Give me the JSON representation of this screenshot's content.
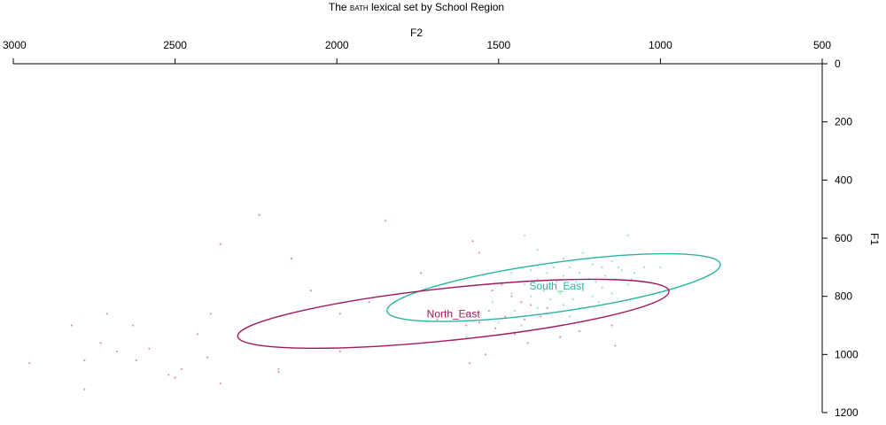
{
  "chart_data": {
    "type": "scatter",
    "title_prefix": "The ",
    "title_keyword": "bath",
    "title_suffix": " lexical set by School Region",
    "xlabel": "F2",
    "ylabel": "F1",
    "xlim": [
      3000,
      500
    ],
    "ylim": [
      0,
      1200
    ],
    "x_ticks": [
      3000,
      2500,
      2000,
      1500,
      1000,
      500
    ],
    "y_ticks": [
      0,
      200,
      400,
      600,
      800,
      1000,
      1200
    ],
    "x_tick_labels": [
      "3000",
      "2500",
      "2000",
      "1500",
      "1000",
      "500"
    ],
    "y_tick_labels": [
      "0",
      "200",
      "400",
      "600",
      "800",
      "1000",
      "1200"
    ],
    "x_axis_position": "top",
    "y_axis_position": "right",
    "grid": false,
    "series": [
      {
        "name": "South_East",
        "color": "#2BB3A5",
        "label_at": [
          1320,
          765
        ],
        "ellipse": {
          "cx": 1330,
          "cy": 770,
          "rx": 520,
          "ry": 85,
          "angle": -8
        },
        "points": [
          [
            1100,
            590
          ],
          [
            1420,
            590
          ],
          [
            1380,
            640
          ],
          [
            1240,
            650
          ],
          [
            1300,
            670
          ],
          [
            1150,
            680
          ],
          [
            1210,
            690
          ],
          [
            1280,
            700
          ],
          [
            1330,
            700
          ],
          [
            1180,
            700
          ],
          [
            1050,
            700
          ],
          [
            1000,
            700
          ],
          [
            1400,
            710
          ],
          [
            1120,
            710
          ],
          [
            1250,
            720
          ],
          [
            1350,
            720
          ],
          [
            1460,
            720
          ],
          [
            1080,
            720
          ],
          [
            1170,
            730
          ],
          [
            1300,
            730
          ],
          [
            1220,
            740
          ],
          [
            1380,
            740
          ],
          [
            1140,
            740
          ],
          [
            1260,
            750
          ],
          [
            1320,
            750
          ],
          [
            1200,
            750
          ],
          [
            1100,
            760
          ],
          [
            1420,
            760
          ],
          [
            1280,
            770
          ],
          [
            1180,
            770
          ],
          [
            1360,
            780
          ],
          [
            1240,
            780
          ],
          [
            1150,
            790
          ],
          [
            1310,
            790
          ],
          [
            1460,
            790
          ],
          [
            1210,
            800
          ],
          [
            1400,
            800
          ],
          [
            1270,
            810
          ],
          [
            1340,
            810
          ],
          [
            1190,
            820
          ],
          [
            1520,
            820
          ],
          [
            1300,
            830
          ],
          [
            1250,
            840
          ],
          [
            1380,
            840
          ],
          [
            1450,
            850
          ],
          [
            1350,
            860
          ],
          [
            1560,
            860
          ],
          [
            1280,
            870
          ],
          [
            1500,
            890
          ],
          [
            1430,
            900
          ],
          [
            1600,
            940
          ],
          [
            1130,
            700
          ],
          [
            1090,
            740
          ]
        ]
      },
      {
        "name": "North_East",
        "color": "#A3175F",
        "label_at": [
          1640,
          860
        ],
        "ellipse": {
          "cx": 1640,
          "cy": 860,
          "rx": 670,
          "ry": 90,
          "angle": -6
        },
        "points": [
          [
            2240,
            520
          ],
          [
            1850,
            540
          ],
          [
            2360,
            620
          ],
          [
            2140,
            670
          ],
          [
            1740,
            720
          ],
          [
            1580,
            610
          ],
          [
            1560,
            650
          ],
          [
            1490,
            760
          ],
          [
            1520,
            780
          ],
          [
            1460,
            800
          ],
          [
            1430,
            820
          ],
          [
            1400,
            830
          ],
          [
            1350,
            840
          ],
          [
            1530,
            850
          ],
          [
            1600,
            860
          ],
          [
            1480,
            870
          ],
          [
            1420,
            880
          ],
          [
            1370,
            870
          ],
          [
            1560,
            890
          ],
          [
            1600,
            900
          ],
          [
            1690,
            880
          ],
          [
            1510,
            910
          ],
          [
            1450,
            930
          ],
          [
            1410,
            960
          ],
          [
            1310,
            940
          ],
          [
            1250,
            920
          ],
          [
            1150,
            900
          ],
          [
            1140,
            970
          ],
          [
            1540,
            1000
          ],
          [
            1990,
            860
          ],
          [
            1900,
            820
          ],
          [
            2080,
            780
          ],
          [
            2390,
            860
          ],
          [
            2430,
            930
          ],
          [
            2580,
            980
          ],
          [
            2780,
            1020
          ],
          [
            2950,
            1030
          ],
          [
            2620,
            1020
          ],
          [
            2680,
            990
          ],
          [
            2730,
            960
          ],
          [
            2630,
            900
          ],
          [
            2820,
            900
          ],
          [
            2710,
            860
          ],
          [
            2480,
            1050
          ],
          [
            2520,
            1070
          ],
          [
            2400,
            1010
          ],
          [
            2180,
            1050
          ],
          [
            2180,
            1060
          ],
          [
            2360,
            1100
          ],
          [
            2780,
            1120
          ],
          [
            2500,
            1080
          ],
          [
            1590,
            1030
          ],
          [
            1990,
            990
          ]
        ]
      }
    ]
  }
}
